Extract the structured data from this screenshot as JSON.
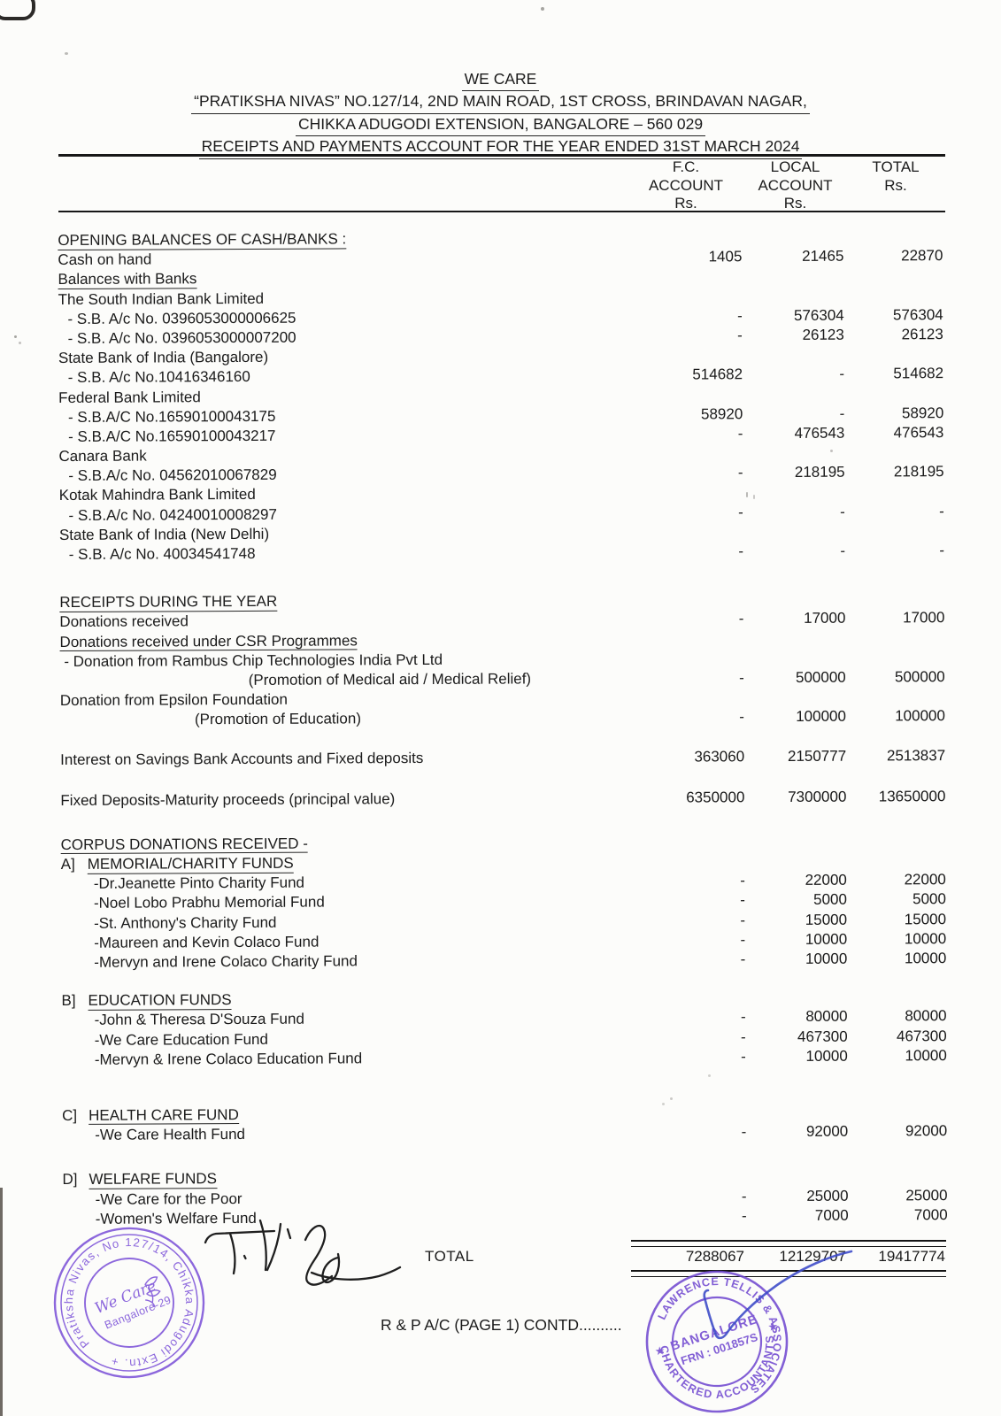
{
  "document": {
    "org_name": "WE CARE",
    "address_line1": "“PRATIKSHA NIVAS” NO.127/14,  2ND MAIN ROAD, 1ST CROSS, BRINDAVAN NAGAR,",
    "address_line2": "CHIKKA ADUGODI EXTENSION, BANGALORE – 560 029",
    "statement_title": "RECEIPTS AND PAYMENTS ACCOUNT FOR THE YEAR ENDED 31ST MARCH 2024"
  },
  "columns": {
    "fc": [
      "F.C.",
      "ACCOUNT",
      "Rs."
    ],
    "local": [
      "LOCAL",
      "ACCOUNT",
      "Rs."
    ],
    "total": [
      "TOTAL",
      "",
      "Rs."
    ]
  },
  "rows": [
    {
      "label": "OPENING BALANCES OF CASH/BANKS :",
      "u": true
    },
    {
      "label": "Cash on hand",
      "fc": "1405",
      "local": "21465",
      "total": "22870"
    },
    {
      "label": "Balances with Banks",
      "u": true
    },
    {
      "label": "The South Indian Bank Limited"
    },
    {
      "label": " - S.B. A/c No. 0396053000006625",
      "ind": 1,
      "fc": "-",
      "local": "576304",
      "total": "576304"
    },
    {
      "label": " - S.B. A/c No. 0396053000007200",
      "ind": 1,
      "fc": "-",
      "local": "26123",
      "total": "26123"
    },
    {
      "label": "State Bank of India (Bangalore)"
    },
    {
      "label": " - S.B. A/c No.10416346160",
      "ind": 1,
      "fc": "514682",
      "local": "-",
      "total": "514682"
    },
    {
      "label": "Federal Bank Limited"
    },
    {
      "label": " - S.B.A/C No.16590100043175",
      "ind": 1,
      "fc": "58920",
      "local": "-",
      "total": "58920"
    },
    {
      "label": " - S.B.A/C No.16590100043217",
      "ind": 1,
      "fc": "-",
      "local": "476543",
      "total": "476543"
    },
    {
      "label": "Canara Bank"
    },
    {
      "label": " - S.B.A/c No. 04562010067829",
      "ind": 1,
      "fc": "-",
      "local": "218195",
      "total": "218195"
    },
    {
      "label": "Kotak Mahindra Bank Limited"
    },
    {
      "label": " - S.B.A/c No. 04240010008297",
      "ind": 1,
      "fc": "-",
      "local": "-",
      "total": "-"
    },
    {
      "label": "State Bank of India (New Delhi)"
    },
    {
      "label": " - S.B. A/c No. 40034541748",
      "ind": 1,
      "fc": "-",
      "local": "-",
      "total": "-"
    },
    {
      "sp": 32
    },
    {
      "label": "RECEIPTS DURING THE YEAR",
      "u": true
    },
    {
      "label": "Donations received",
      "fc": "-",
      "local": "17000",
      "total": "17000"
    },
    {
      "label": "Donations received under CSR Programmes",
      "u": true
    },
    {
      "label": " - Donation from Rambus Chip Technologies India Pvt Ltd"
    },
    {
      "label": "(Promotion of Medical aid / Medical Relief)",
      "ind": 3,
      "fc": "-",
      "local": "500000",
      "total": "500000"
    },
    {
      "label": "Donation from Epsilon Foundation"
    },
    {
      "label": "(Promotion of Education)",
      "ind": 4,
      "fc": "-",
      "local": "100000",
      "total": "100000"
    },
    {
      "sp": 22
    },
    {
      "label": "Interest on Savings Bank Accounts and Fixed deposits",
      "fc": "363060",
      "local": "2150777",
      "total": "2513837"
    },
    {
      "sp": 24
    },
    {
      "label": "Fixed Deposits-Maturity proceeds (principal value)",
      "fc": "6350000",
      "local": "7300000",
      "total": "13650000"
    },
    {
      "sp": 28
    },
    {
      "label": "CORPUS DONATIONS RECEIVED -",
      "u": true
    },
    {
      "prefix": "A]",
      "label": "MEMORIAL/CHARITY FUNDS",
      "u": true
    },
    {
      "label": "-Dr.Jeanette Pinto Charity Fund",
      "ind": 2,
      "fc": "-",
      "local": "22000",
      "total": "22000"
    },
    {
      "label": "-Noel Lobo Prabhu Memorial Fund",
      "ind": 2,
      "fc": "-",
      "local": "5000",
      "total": "5000"
    },
    {
      "label": "-St. Anthony's Charity Fund",
      "ind": 2,
      "fc": "-",
      "local": "15000",
      "total": "15000"
    },
    {
      "label": "-Maureen and Kevin Colaco Fund",
      "ind": 2,
      "fc": "-",
      "local": "10000",
      "total": "10000"
    },
    {
      "label": "-Mervyn and Irene Colaco Charity Fund",
      "ind": 2,
      "fc": "-",
      "local": "10000",
      "total": "10000"
    },
    {
      "sp": 21
    },
    {
      "prefix": "B]",
      "label": "EDUCATION FUNDS",
      "u": true
    },
    {
      "label": "-John & Theresa D'Souza Fund",
      "ind": 2,
      "fc": "-",
      "local": "80000",
      "total": "80000"
    },
    {
      "label": "-We Care Education Fund",
      "ind": 2,
      "fc": "-",
      "local": "467300",
      "total": "467300"
    },
    {
      "label": "-Mervyn & Irene Colaco Education Fund",
      "ind": 2,
      "fc": "-",
      "local": "10000",
      "total": "10000"
    },
    {
      "sp": 41
    },
    {
      "prefix": "C]",
      "label": "HEALTH CARE FUND",
      "u": true
    },
    {
      "label": "-We Care Health Fund",
      "ind": 2,
      "fc": "-",
      "local": "92000",
      "total": "92000"
    },
    {
      "sp": 28
    },
    {
      "prefix": "D]",
      "label": "WELFARE FUNDS",
      "u": true
    },
    {
      "label": "-We Care for the Poor",
      "ind": 2,
      "fc": "-",
      "local": "25000",
      "total": "25000"
    },
    {
      "label": "-Women's Welfare Fund",
      "ind": 2,
      "fc": "-",
      "local": "7000",
      "total": "7000"
    }
  ],
  "total_row": {
    "label": "TOTAL",
    "fc": "7288067",
    "local": "12129707",
    "total": "19417774"
  },
  "footer": {
    "continuation": "R & P A/C (PAGE 1) CONTD.........."
  },
  "stamps": {
    "org_stamp": {
      "ring_text": "Pratiksha Nivas, No 127/14, Chikka Adugodi Extn. +",
      "center_line1": "We Care",
      "center_line2": "Bangalore-29",
      "color": "#7a4fd8"
    },
    "ca_stamp": {
      "ring_top": "LAWRENCE TELLIS & ASSOCIATES",
      "ring_bottom": "CHARTERED ACCOUNTANTS",
      "star": "★",
      "center_line1": "BANGALORE",
      "center_line2": "FRN : 001857S",
      "color": "#6d44cf"
    }
  }
}
